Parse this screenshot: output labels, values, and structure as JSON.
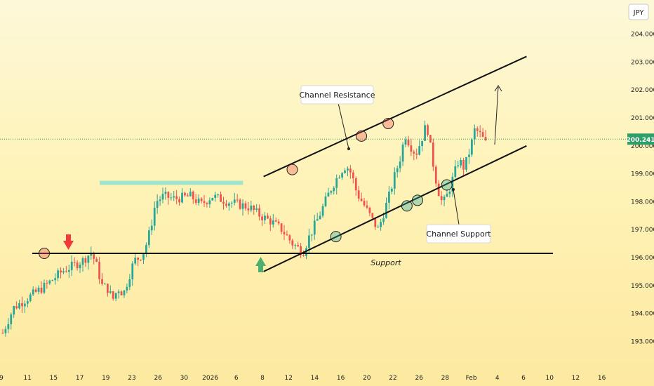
{
  "chart_data": {
    "type": "candlestick",
    "currency_label": "JPY",
    "last_price": "200.241",
    "y_ticks": [
      "204.000",
      "203.000",
      "202.000",
      "201.000",
      "200.000",
      "199.000",
      "198.000",
      "197.000",
      "196.000",
      "195.000",
      "194.000",
      "193.000"
    ],
    "ylim": [
      192.5,
      205.0
    ],
    "x_ticks": [
      "9",
      "11",
      "15",
      "17",
      "19",
      "23",
      "26",
      "30",
      "2026",
      "6",
      "8",
      "12",
      "14",
      "16",
      "20",
      "22",
      "26",
      "28",
      "Feb",
      "4",
      "6",
      "10",
      "12",
      "16"
    ],
    "bar_count": 176,
    "path": [
      [
        0,
        193.3
      ],
      [
        4,
        194.2
      ],
      [
        10,
        194.6
      ],
      [
        16,
        195.0
      ],
      [
        22,
        195.5
      ],
      [
        30,
        195.9
      ],
      [
        33,
        196.2
      ],
      [
        35,
        195.7
      ],
      [
        37,
        195.0
      ],
      [
        39,
        194.9
      ],
      [
        41,
        194.5
      ],
      [
        43,
        194.9
      ],
      [
        45,
        194.7
      ],
      [
        47,
        195.3
      ],
      [
        49,
        195.9
      ],
      [
        51,
        196.0
      ],
      [
        53,
        196.3
      ],
      [
        55,
        197.0
      ],
      [
        57,
        198.0
      ],
      [
        60,
        198.2
      ],
      [
        64,
        198.1
      ],
      [
        70,
        198.2
      ],
      [
        74,
        197.9
      ],
      [
        78,
        198.2
      ],
      [
        84,
        198.0
      ],
      [
        88,
        197.9
      ],
      [
        92,
        197.8
      ],
      [
        96,
        197.5
      ],
      [
        100,
        197.3
      ],
      [
        104,
        197.0
      ],
      [
        108,
        196.5
      ],
      [
        112,
        196.2
      ],
      [
        114,
        196.7
      ],
      [
        118,
        197.5
      ],
      [
        122,
        198.4
      ],
      [
        126,
        199.1
      ],
      [
        128,
        199.3
      ],
      [
        130,
        199.0
      ],
      [
        132,
        198.3
      ],
      [
        134,
        198.0
      ],
      [
        138,
        197.3
      ],
      [
        140,
        197.0
      ],
      [
        142,
        197.6
      ],
      [
        144,
        198.2
      ],
      [
        146,
        198.9
      ],
      [
        148,
        199.5
      ],
      [
        150,
        200.4
      ],
      [
        152,
        200.0
      ],
      [
        154,
        199.7
      ],
      [
        156,
        200.2
      ],
      [
        158,
        200.8
      ],
      [
        160,
        199.6
      ],
      [
        162,
        198.5
      ],
      [
        164,
        197.9
      ],
      [
        166,
        198.3
      ],
      [
        168,
        198.9
      ],
      [
        170,
        199.5
      ],
      [
        172,
        199.2
      ],
      [
        174,
        199.8
      ],
      [
        176,
        200.6
      ],
      [
        178,
        200.4
      ],
      [
        180,
        200.1
      ]
    ],
    "channel_resistance": {
      "x": [
        0.423,
        0.845
      ],
      "y": [
        198.9,
        203.2
      ]
    },
    "channel_support": {
      "x": [
        0.423,
        0.845
      ],
      "y": [
        195.5,
        200.0
      ]
    },
    "support_level": 196.15,
    "resistance_zone": {
      "x": [
        0.16,
        0.39
      ],
      "y": [
        198.6,
        198.75
      ]
    },
    "touch_circles": [
      {
        "x": 0.071,
        "y": 196.15,
        "kind": "resistance"
      },
      {
        "x": 0.469,
        "y": 199.15,
        "kind": "resistance"
      },
      {
        "x": 0.58,
        "y": 200.35,
        "kind": "resistance"
      },
      {
        "x": 0.623,
        "y": 200.8,
        "kind": "resistance"
      },
      {
        "x": 0.539,
        "y": 196.75,
        "kind": "support"
      },
      {
        "x": 0.653,
        "y": 197.85,
        "kind": "support"
      },
      {
        "x": 0.67,
        "y": 198.05,
        "kind": "support"
      },
      {
        "x": 0.717,
        "y": 198.6,
        "kind": "support"
      }
    ],
    "bull_color": "#26a69a",
    "bear_color": "#ef5350"
  },
  "annotations": {
    "channel_resistance": "Channel Resistance",
    "channel_support": "Channel Support",
    "support": "Support"
  }
}
